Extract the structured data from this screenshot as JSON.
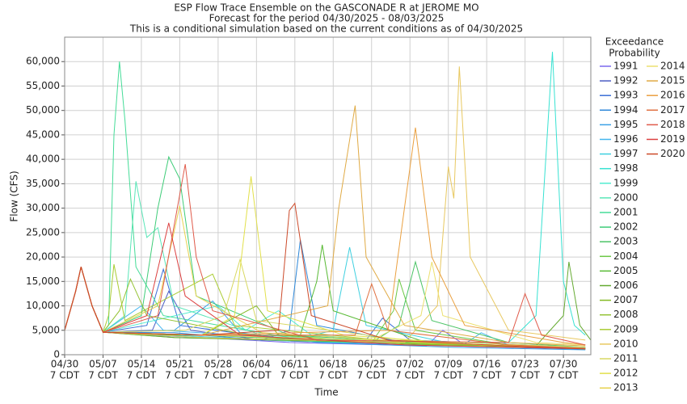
{
  "chart_data": {
    "type": "line",
    "title": "ESP Flow Trace Ensemble on the GASCONADE R at JEROME MO",
    "subtitle": "Forecast for the period 04/30/2025 - 08/03/2025",
    "subtitle2": "This is a conditional simulation based on the current conditions as of 04/30/2025",
    "x_label": "Time",
    "y_label": "Flow (CFS)",
    "legend_title": [
      "Exceedance",
      "Probability"
    ],
    "xlim": [
      "04/30",
      "08/04"
    ],
    "xticks": [
      "04/30",
      "05/07",
      "05/14",
      "05/21",
      "05/28",
      "06/04",
      "06/11",
      "06/18",
      "06/25",
      "07/02",
      "07/09",
      "07/16",
      "07/23",
      "07/30"
    ],
    "xtick_sublabel": "7 CDT",
    "ylim": [
      0,
      65000
    ],
    "yticks": [
      0,
      {
        "value": 5000,
        "label": "5,000"
      },
      {
        "value": 10000,
        "label": "10,000"
      },
      {
        "value": 15000,
        "label": "15,000"
      },
      {
        "value": 20000,
        "label": "20,000"
      },
      {
        "value": 25000,
        "label": "25,000"
      },
      {
        "value": 30000,
        "label": "30,000"
      },
      {
        "value": 35000,
        "label": "35,000"
      },
      {
        "value": 40000,
        "label": "40,000"
      },
      {
        "value": 45000,
        "label": "45,000"
      },
      {
        "value": 50000,
        "label": "50,000"
      },
      {
        "value": 55000,
        "label": "55,000"
      },
      {
        "value": 60000,
        "label": "60,000"
      }
    ],
    "grid": true,
    "legend": "right",
    "series": [
      {
        "name": "1991",
        "color": "#7b68ee",
        "x": [
          "04/30",
          "05/02",
          "05/03",
          "05/05",
          "05/07",
          "05/15",
          "05/25",
          "06/10",
          "07/05",
          "07/08",
          "07/12",
          "08/03"
        ],
        "values": [
          5000,
          13000,
          18000,
          10000,
          4600,
          4000,
          3500,
          2500,
          1800,
          5000,
          2000,
          1200
        ]
      },
      {
        "name": "1992",
        "color": "#4b5cc4",
        "x": [
          "04/30",
          "05/02",
          "05/03",
          "05/05",
          "05/07",
          "05/16",
          "05/19",
          "05/23",
          "06/05",
          "06/25",
          "07/20",
          "08/03"
        ],
        "values": [
          5000,
          13000,
          18000,
          10000,
          4600,
          5000,
          13000,
          5000,
          3000,
          2200,
          1500,
          1100
        ]
      },
      {
        "name": "1993",
        "color": "#3a6ed6",
        "x": [
          "04/30",
          "05/02",
          "05/03",
          "05/05",
          "05/07",
          "05/15",
          "05/18",
          "05/21",
          "06/10",
          "06/24",
          "06/27",
          "07/02",
          "08/03"
        ],
        "values": [
          5000,
          13000,
          18000,
          10000,
          4600,
          6000,
          17500,
          6000,
          3000,
          3000,
          7500,
          3000,
          1500
        ]
      },
      {
        "name": "1994",
        "color": "#2b86d8",
        "x": [
          "04/30",
          "05/02",
          "05/03",
          "05/05",
          "05/07",
          "05/20",
          "06/05",
          "06/10",
          "06/12",
          "06/15",
          "07/01",
          "08/03"
        ],
        "values": [
          5000,
          13000,
          18000,
          10000,
          4600,
          4500,
          3000,
          5000,
          23500,
          6000,
          2500,
          1300
        ]
      },
      {
        "name": "1995",
        "color": "#3aa0e6",
        "x": [
          "04/30",
          "05/02",
          "05/03",
          "05/05",
          "05/07",
          "05/20",
          "05/27",
          "06/01",
          "06/15",
          "07/10",
          "08/03"
        ],
        "values": [
          5000,
          13000,
          18000,
          10000,
          4600,
          5000,
          11000,
          4500,
          2500,
          1500,
          1000
        ]
      },
      {
        "name": "1996",
        "color": "#44b6ee",
        "x": [
          "04/30",
          "05/02",
          "05/03",
          "05/05",
          "05/07",
          "05/14",
          "05/18",
          "06/20",
          "07/12",
          "07/15",
          "07/20",
          "08/03"
        ],
        "values": [
          5000,
          13000,
          18000,
          10000,
          4600,
          10000,
          5000,
          2500,
          2200,
          4500,
          2000,
          1300
        ]
      },
      {
        "name": "1997",
        "color": "#3fd0e0",
        "x": [
          "04/30",
          "05/02",
          "05/03",
          "05/05",
          "05/07",
          "05/20",
          "06/10",
          "06/18",
          "06/21",
          "06/24",
          "07/10",
          "08/03"
        ],
        "values": [
          5000,
          13000,
          18000,
          10000,
          4600,
          4000,
          2800,
          5000,
          22000,
          6000,
          2200,
          1400
        ]
      },
      {
        "name": "1998",
        "color": "#38e2d2",
        "x": [
          "04/30",
          "05/02",
          "05/03",
          "05/05",
          "05/07",
          "05/25",
          "06/20",
          "07/20",
          "07/25",
          "07/28",
          "07/30",
          "08/01",
          "08/03"
        ],
        "values": [
          5000,
          13000,
          18000,
          10000,
          4600,
          3500,
          2500,
          2500,
          8000,
          62000,
          15000,
          6000,
          4000
        ]
      },
      {
        "name": "1999",
        "color": "#52ecd0",
        "x": [
          "04/30",
          "05/02",
          "05/03",
          "05/05",
          "05/07",
          "05/28",
          "06/02",
          "06/08",
          "06/14",
          "07/10",
          "08/03"
        ],
        "values": [
          5000,
          13000,
          18000,
          10000,
          4600,
          10000,
          5000,
          9000,
          4000,
          2000,
          1200
        ]
      },
      {
        "name": "2000",
        "color": "#5ae6b8",
        "x": [
          "04/30",
          "05/02",
          "05/03",
          "05/05",
          "05/07",
          "05/11",
          "05/13",
          "05/15",
          "05/17",
          "05/20",
          "06/05",
          "07/05",
          "08/03"
        ],
        "values": [
          5000,
          13000,
          18000,
          10000,
          4600,
          8000,
          35500,
          24000,
          26000,
          10000,
          4000,
          2000,
          1200
        ]
      },
      {
        "name": "2001",
        "color": "#45dc98",
        "x": [
          "04/30",
          "05/02",
          "05/03",
          "05/05",
          "05/07",
          "05/08",
          "05/09",
          "05/10",
          "05/11",
          "05/13",
          "05/18",
          "06/10",
          "07/10",
          "08/03"
        ],
        "values": [
          5000,
          13000,
          18000,
          10000,
          4600,
          6000,
          45000,
          60000,
          48000,
          18000,
          8000,
          3500,
          2000,
          1300
        ]
      },
      {
        "name": "2002",
        "color": "#3ecc78",
        "x": [
          "04/30",
          "05/02",
          "05/03",
          "05/05",
          "05/07",
          "05/14",
          "05/17",
          "05/19",
          "05/21",
          "05/24",
          "06/10",
          "07/10",
          "08/03"
        ],
        "values": [
          5000,
          13000,
          18000,
          10000,
          4600,
          8000,
          30000,
          40500,
          36000,
          12000,
          4000,
          2000,
          1200
        ]
      },
      {
        "name": "2003",
        "color": "#4cc466",
        "x": [
          "04/30",
          "05/02",
          "05/03",
          "05/05",
          "05/07",
          "05/25",
          "06/25",
          "06/30",
          "07/03",
          "07/06",
          "07/20",
          "08/03"
        ],
        "values": [
          5000,
          13000,
          18000,
          10000,
          4600,
          4000,
          2500,
          6000,
          19000,
          7000,
          2500,
          1500
        ]
      },
      {
        "name": "2004",
        "color": "#6cc846",
        "x": [
          "04/30",
          "05/02",
          "05/03",
          "05/05",
          "05/07",
          "05/20",
          "06/25",
          "06/29",
          "06/30",
          "07/03",
          "07/20",
          "08/03"
        ],
        "values": [
          5000,
          13000,
          18000,
          10000,
          4600,
          3500,
          2500,
          9000,
          15500,
          5000,
          2000,
          1200
        ]
      },
      {
        "name": "2005",
        "color": "#58ba34",
        "x": [
          "04/30",
          "05/02",
          "05/03",
          "05/05",
          "05/07",
          "05/20",
          "06/12",
          "06/15",
          "06/16",
          "06/18",
          "07/05",
          "08/03"
        ],
        "values": [
          5000,
          13000,
          18000,
          10000,
          4600,
          4000,
          4000,
          15000,
          22500,
          9000,
          2500,
          1300
        ]
      },
      {
        "name": "2006",
        "color": "#64aa30",
        "x": [
          "04/30",
          "05/02",
          "05/03",
          "05/05",
          "05/07",
          "05/20",
          "07/25",
          "07/30",
          "07/31",
          "08/02",
          "08/04"
        ],
        "values": [
          5000,
          13000,
          18000,
          10000,
          4600,
          3500,
          1800,
          8000,
          19000,
          6000,
          3000
        ]
      },
      {
        "name": "2007",
        "color": "#84ba24",
        "x": [
          "04/30",
          "05/02",
          "05/03",
          "05/05",
          "05/07",
          "05/25",
          "06/04",
          "06/08",
          "07/01",
          "08/03"
        ],
        "values": [
          5000,
          13000,
          18000,
          10000,
          4600,
          4000,
          10000,
          4000,
          2200,
          1200
        ]
      },
      {
        "name": "2008",
        "color": "#94c234",
        "x": [
          "04/30",
          "05/02",
          "05/03",
          "05/05",
          "05/07",
          "05/10",
          "05/12",
          "05/15",
          "06/05",
          "07/10",
          "08/03"
        ],
        "values": [
          5000,
          13000,
          18000,
          10000,
          4600,
          9000,
          15500,
          8000,
          3500,
          2000,
          1200
        ]
      },
      {
        "name": "2009",
        "color": "#aacc34",
        "x": [
          "04/30",
          "05/02",
          "05/03",
          "05/05",
          "05/07",
          "05/08",
          "05/09",
          "05/11",
          "05/27",
          "05/31",
          "07/01",
          "08/03"
        ],
        "values": [
          5000,
          13000,
          18000,
          10000,
          4600,
          8000,
          18500,
          7000,
          16500,
          6000,
          2500,
          1300
        ]
      },
      {
        "name": "2010",
        "color": "#e8c860",
        "x": [
          "04/30",
          "05/02",
          "05/03",
          "05/05",
          "05/07",
          "05/25",
          "07/01",
          "07/07",
          "07/09",
          "07/10",
          "07/11",
          "07/13",
          "07/20",
          "08/03"
        ],
        "values": [
          5000,
          13000,
          18000,
          10000,
          4600,
          3500,
          2500,
          10000,
          38500,
          32000,
          59000,
          20000,
          5000,
          3000
        ]
      },
      {
        "name": "2011",
        "color": "#d8d862",
        "x": [
          "04/30",
          "05/02",
          "05/03",
          "05/05",
          "05/07",
          "05/22",
          "05/29",
          "06/01",
          "06/04",
          "07/01",
          "08/03"
        ],
        "values": [
          5000,
          13000,
          18000,
          10000,
          4600,
          5000,
          8000,
          19500,
          7000,
          3000,
          1500
        ]
      },
      {
        "name": "2012",
        "color": "#e2e04a",
        "x": [
          "04/30",
          "05/02",
          "05/03",
          "05/05",
          "05/07",
          "05/25",
          "05/31",
          "06/03",
          "06/06",
          "06/20",
          "07/15",
          "08/03"
        ],
        "values": [
          5000,
          13000,
          18000,
          10000,
          4600,
          4000,
          8000,
          36500,
          9000,
          4000,
          2000,
          1200
        ]
      },
      {
        "name": "2013",
        "color": "#e8d250",
        "x": [
          "04/30",
          "05/02",
          "05/03",
          "05/05",
          "05/07",
          "05/17",
          "05/21",
          "05/24",
          "06/05",
          "07/05",
          "08/03"
        ],
        "values": [
          5000,
          13000,
          18000,
          10000,
          4600,
          10000,
          30500,
          12000,
          4500,
          2500,
          1300
        ]
      },
      {
        "name": "2014",
        "color": "#ece070",
        "x": [
          "04/30",
          "05/02",
          "05/03",
          "05/05",
          "05/07",
          "05/25",
          "06/25",
          "07/04",
          "07/06",
          "07/08",
          "07/25",
          "08/03"
        ],
        "values": [
          5000,
          13000,
          18000,
          10000,
          4600,
          4000,
          3000,
          8000,
          19000,
          8000,
          2500,
          2000
        ]
      },
      {
        "name": "2015",
        "color": "#e0aa44",
        "x": [
          "04/30",
          "05/02",
          "05/03",
          "05/05",
          "05/07",
          "05/25",
          "06/17",
          "06/19",
          "06/22",
          "06/24",
          "07/01",
          "07/20",
          "08/03"
        ],
        "values": [
          5000,
          13000,
          18000,
          10000,
          4600,
          4000,
          10000,
          30000,
          51000,
          20000,
          6000,
          2500,
          1800
        ]
      },
      {
        "name": "2016",
        "color": "#eaa040",
        "x": [
          "04/30",
          "05/02",
          "05/03",
          "05/05",
          "05/07",
          "05/25",
          "06/28",
          "07/01",
          "07/03",
          "07/06",
          "07/12",
          "07/30",
          "08/03"
        ],
        "values": [
          5000,
          13000,
          18000,
          10000,
          4600,
          4000,
          5000,
          30000,
          46500,
          20000,
          6000,
          2500,
          2000
        ]
      },
      {
        "name": "2017",
        "color": "#e07040",
        "x": [
          "04/30",
          "05/02",
          "05/03",
          "05/05",
          "05/07",
          "05/25",
          "06/22",
          "06/25",
          "06/28",
          "07/20",
          "08/03"
        ],
        "values": [
          5000,
          13000,
          18000,
          10000,
          4600,
          4000,
          4000,
          14500,
          5000,
          2000,
          1300
        ]
      },
      {
        "name": "2018",
        "color": "#e05a4a",
        "x": [
          "04/30",
          "05/02",
          "05/03",
          "05/05",
          "05/07",
          "05/17",
          "05/22",
          "05/24",
          "05/27",
          "06/15",
          "07/20",
          "07/23",
          "07/26",
          "08/03"
        ],
        "values": [
          5000,
          13000,
          18000,
          10000,
          4600,
          8000,
          39000,
          20000,
          9000,
          3000,
          2500,
          12500,
          4000,
          2000
        ]
      },
      {
        "name": "2019",
        "color": "#dc4040",
        "x": [
          "04/30",
          "05/02",
          "05/03",
          "05/05",
          "05/07",
          "05/15",
          "05/19",
          "05/22",
          "06/01",
          "07/01",
          "08/03"
        ],
        "values": [
          5000,
          13000,
          18000,
          10000,
          4600,
          8000,
          27000,
          12000,
          4000,
          2000,
          1200
        ]
      },
      {
        "name": "2020",
        "color": "#cc4a2a",
        "x": [
          "04/30",
          "05/02",
          "05/03",
          "05/05",
          "05/07",
          "05/25",
          "06/08",
          "06/10",
          "06/11",
          "06/14",
          "06/28",
          "07/20",
          "08/03"
        ],
        "values": [
          5000,
          13000,
          18000,
          10000,
          4600,
          4000,
          5000,
          29500,
          31000,
          8000,
          3000,
          1800,
          1200
        ]
      }
    ]
  }
}
